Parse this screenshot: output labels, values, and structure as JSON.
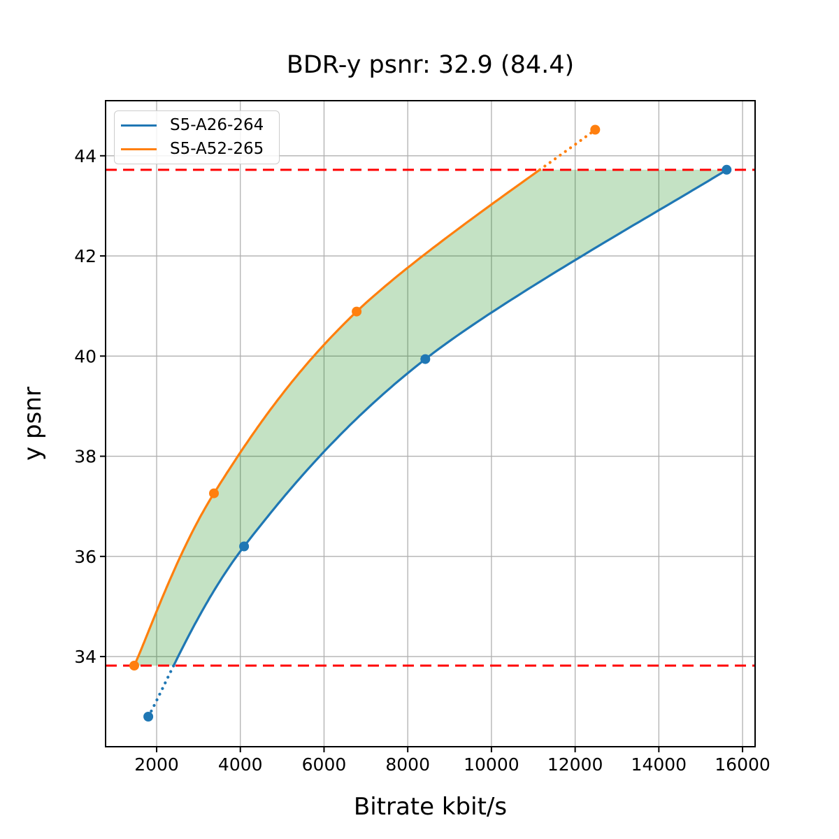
{
  "figure": {
    "background": "#ffffff"
  },
  "chart_data": {
    "type": "line",
    "title": "BDR-y psnr: 32.9 (84.4)",
    "xlabel": "Bitrate kbit/s",
    "ylabel": "y psnr",
    "xlim": [
      780,
      16300
    ],
    "ylim": [
      32.2,
      45.1
    ],
    "x_ticks": [
      2000,
      4000,
      6000,
      8000,
      10000,
      12000,
      14000,
      16000
    ],
    "y_ticks": [
      34,
      36,
      38,
      40,
      42,
      44
    ],
    "grid": true,
    "grid_color": "#b0b0b0",
    "axis_color": "#000000",
    "legend_position": "upper-left",
    "series": [
      {
        "name": "S5-A26-264",
        "color": "#1f77b4",
        "marker": "circle",
        "x": [
          1800,
          4090,
          8420,
          15620
        ],
        "y": [
          32.8,
          36.2,
          39.94,
          43.72
        ]
      },
      {
        "name": "S5-A52-265",
        "color": "#ff7f0e",
        "marker": "circle",
        "x": [
          1465,
          3370,
          6780,
          12480
        ],
        "y": [
          33.82,
          37.26,
          40.89,
          44.52
        ]
      }
    ],
    "hlines": [
      {
        "y": 43.72,
        "color": "#ff0000",
        "style": "dashed"
      },
      {
        "y": 33.82,
        "color": "#ff0000",
        "style": "dashed"
      }
    ],
    "fill_between": {
      "color": "#008000",
      "opacity": 0.23
    }
  }
}
